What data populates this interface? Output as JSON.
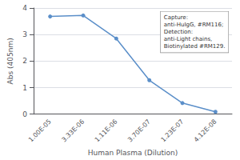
{
  "chart_data": {
    "type": "line",
    "xlabel": "Human Plasma (Dilution)",
    "ylabel": "Abs (405nm)",
    "categories": [
      "1.00E-05",
      "3.33E-06",
      "1.11E-06",
      "3.70E-07",
      "1.23E-07",
      "4.12E-08"
    ],
    "values": [
      3.68,
      3.72,
      2.85,
      1.28,
      0.42,
      0.09
    ],
    "color": "#5b8fc9",
    "marker": "circle",
    "ylim": [
      0,
      4
    ],
    "yticks": [
      0,
      1,
      2,
      3,
      4
    ],
    "grid": true,
    "annotations": [
      "Capture:\nanti-HuIgG, #RM116;\nDetection:\nanti-Light chains,\nBiotinylated #RM129."
    ]
  }
}
